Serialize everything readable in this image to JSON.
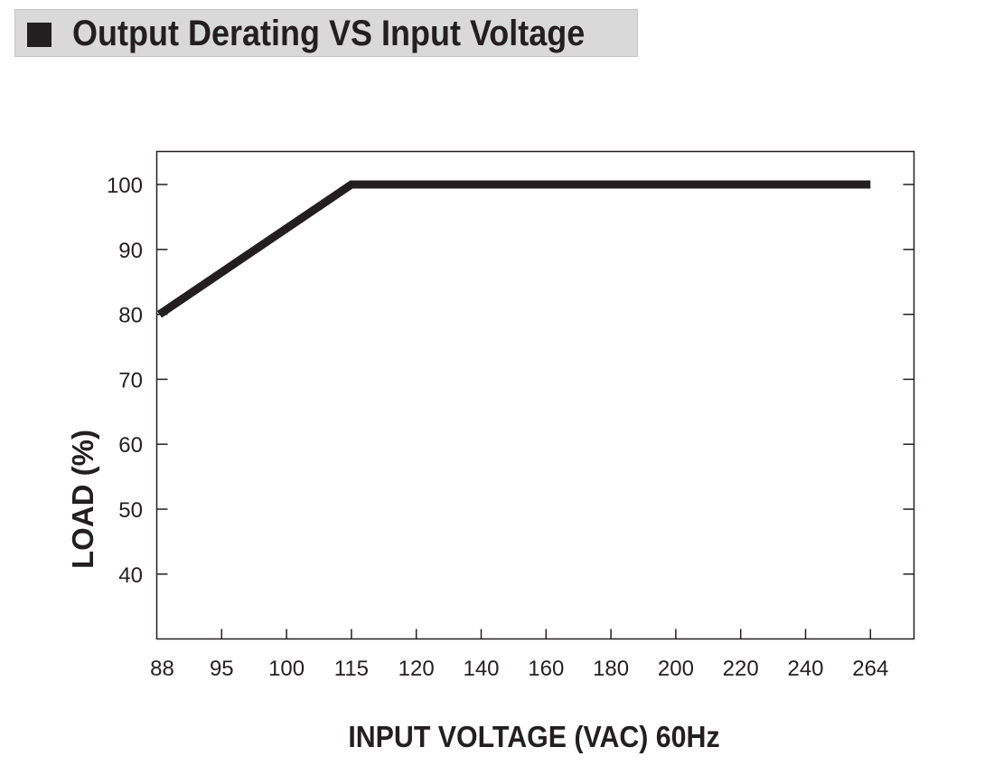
{
  "header": {
    "title": "Output Derating VS Input Voltage"
  },
  "chart_data": {
    "type": "line",
    "title": "Output Derating VS Input Voltage",
    "xlabel": "INPUT VOLTAGE (VAC) 60Hz",
    "ylabel": "LOAD (%)",
    "x_scale": "categorical",
    "x_ticks": [
      "88",
      "95",
      "100",
      "115",
      "120",
      "140",
      "160",
      "180",
      "200",
      "220",
      "240",
      "264"
    ],
    "y_ticks": [
      40,
      50,
      60,
      70,
      80,
      90,
      100
    ],
    "ylim": [
      30,
      105
    ],
    "grid": false,
    "series": [
      {
        "x": [
          "88",
          "115",
          "264"
        ],
        "y": [
          80,
          100,
          100
        ]
      }
    ],
    "colors": {
      "line": "#231f20",
      "axis": "#231f20"
    }
  }
}
